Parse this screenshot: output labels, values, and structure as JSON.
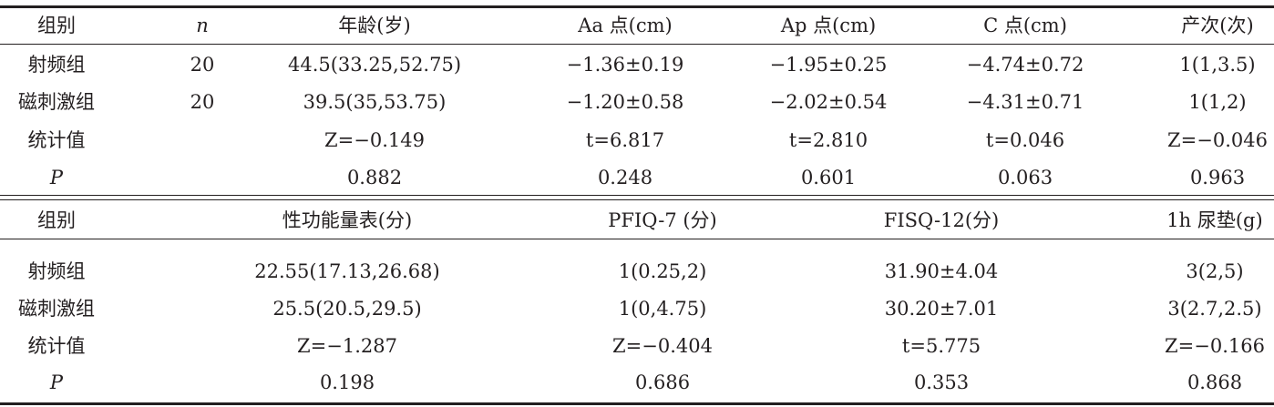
{
  "table1": {
    "headers": [
      "组别",
      "n",
      "年龄(岁)",
      "Aa 点(cm)",
      "Ap 点(cm)",
      "C 点(cm)",
      "产次(次)"
    ],
    "rows": [
      [
        "射频组",
        "20",
        "44.5(33.25,52.75)",
        "−1.36±0.19",
        "−1.95±0.25",
        "−4.74±0.72",
        "1(1,3.5)"
      ],
      [
        "磁刺激组",
        "20",
        "39.5(35,53.75)",
        "−1.20±0.58",
        "−2.02±0.54",
        "−4.31±0.71",
        "1(1,2)"
      ],
      [
        "统计值",
        "",
        "Z=−0.149",
        "t=6.817",
        "t=2.810",
        "t=0.046",
        "Z=−0.046"
      ],
      [
        "P",
        "",
        "0.882",
        "0.248",
        "0.601",
        "0.063",
        "0.963"
      ]
    ]
  },
  "table2": {
    "headers": [
      "组别",
      "性功能量表(分)",
      "PFIQ-7 (分)",
      "FISQ-12(分)",
      "1h 尿垫(g)"
    ],
    "rows": [
      [
        "射频组",
        "22.55(17.13,26.68)",
        "1(0.25,2)",
        "31.90±4.04",
        "3(2,5)"
      ],
      [
        "磁刺激组",
        "25.5(20.5,29.5)",
        "1(0,4.75)",
        "30.20±7.01",
        "3(2.7,2.5)"
      ],
      [
        "统计值",
        "Z=−1.287",
        "Z=−0.404",
        "t=5.775",
        "Z=−0.166"
      ],
      [
        "P",
        "0.198",
        "0.686",
        "0.353",
        "0.868"
      ]
    ]
  }
}
